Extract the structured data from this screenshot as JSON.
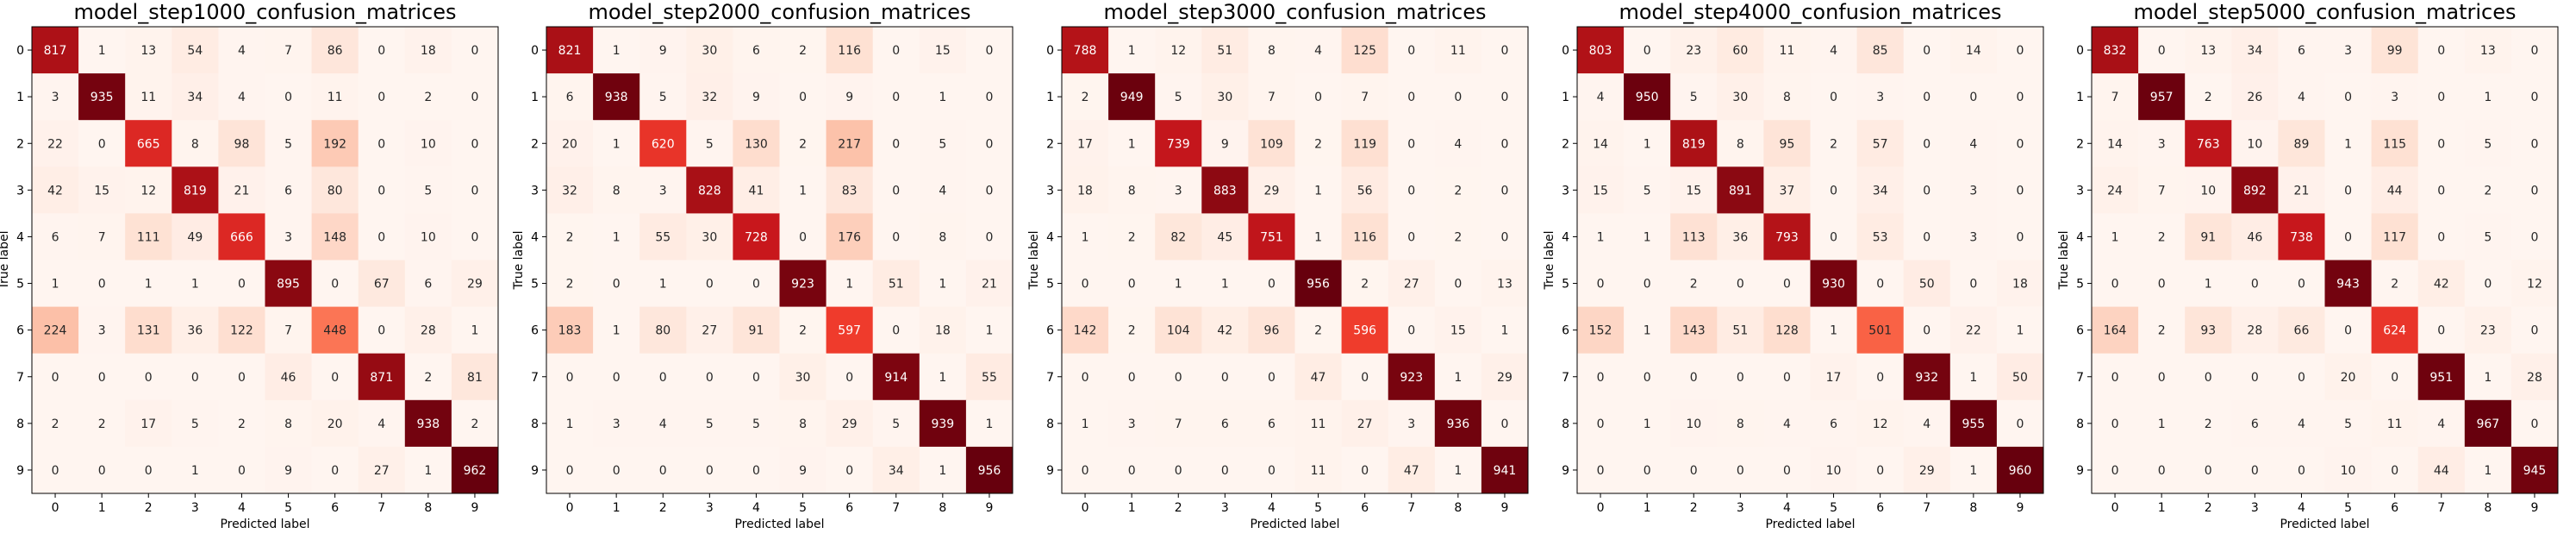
{
  "chart_data": [
    {
      "type": "heatmap",
      "title": "model_step1000_confusion_matrices",
      "xlabel": "Predicted label",
      "ylabel": "True label",
      "x_ticks": [
        "0",
        "1",
        "2",
        "3",
        "4",
        "5",
        "6",
        "7",
        "8",
        "9"
      ],
      "y_ticks": [
        "0",
        "1",
        "2",
        "3",
        "4",
        "5",
        "6",
        "7",
        "8",
        "9"
      ],
      "colormap": "Reds",
      "matrix": [
        [
          817,
          1,
          13,
          54,
          4,
          7,
          86,
          0,
          18,
          0
        ],
        [
          3,
          935,
          11,
          34,
          4,
          0,
          11,
          0,
          2,
          0
        ],
        [
          22,
          0,
          665,
          8,
          98,
          5,
          192,
          0,
          10,
          0
        ],
        [
          42,
          15,
          12,
          819,
          21,
          6,
          80,
          0,
          5,
          0
        ],
        [
          6,
          7,
          111,
          49,
          666,
          3,
          148,
          0,
          10,
          0
        ],
        [
          1,
          0,
          1,
          1,
          0,
          895,
          0,
          67,
          6,
          29
        ],
        [
          224,
          3,
          131,
          36,
          122,
          7,
          448,
          0,
          28,
          1
        ],
        [
          0,
          0,
          0,
          0,
          0,
          46,
          0,
          871,
          2,
          81
        ],
        [
          2,
          2,
          17,
          5,
          2,
          8,
          20,
          4,
          938,
          2
        ],
        [
          0,
          0,
          0,
          1,
          0,
          9,
          0,
          27,
          1,
          962
        ]
      ]
    },
    {
      "type": "heatmap",
      "title": "model_step2000_confusion_matrices",
      "xlabel": "Predicted label",
      "ylabel": "True label",
      "x_ticks": [
        "0",
        "1",
        "2",
        "3",
        "4",
        "5",
        "6",
        "7",
        "8",
        "9"
      ],
      "y_ticks": [
        "0",
        "1",
        "2",
        "3",
        "4",
        "5",
        "6",
        "7",
        "8",
        "9"
      ],
      "colormap": "Reds",
      "matrix": [
        [
          821,
          1,
          9,
          30,
          6,
          2,
          116,
          0,
          15,
          0
        ],
        [
          6,
          938,
          5,
          32,
          9,
          0,
          9,
          0,
          1,
          0
        ],
        [
          20,
          1,
          620,
          5,
          130,
          2,
          217,
          0,
          5,
          0
        ],
        [
          32,
          8,
          3,
          828,
          41,
          1,
          83,
          0,
          4,
          0
        ],
        [
          2,
          1,
          55,
          30,
          728,
          0,
          176,
          0,
          8,
          0
        ],
        [
          2,
          0,
          1,
          0,
          0,
          923,
          1,
          51,
          1,
          21
        ],
        [
          183,
          1,
          80,
          27,
          91,
          2,
          597,
          0,
          18,
          1
        ],
        [
          0,
          0,
          0,
          0,
          0,
          30,
          0,
          914,
          1,
          55
        ],
        [
          1,
          3,
          4,
          5,
          5,
          8,
          29,
          5,
          939,
          1
        ],
        [
          0,
          0,
          0,
          0,
          0,
          9,
          0,
          34,
          1,
          956
        ]
      ]
    },
    {
      "type": "heatmap",
      "title": "model_step3000_confusion_matrices",
      "xlabel": "Predicted label",
      "ylabel": "True label",
      "x_ticks": [
        "0",
        "1",
        "2",
        "3",
        "4",
        "5",
        "6",
        "7",
        "8",
        "9"
      ],
      "y_ticks": [
        "0",
        "1",
        "2",
        "3",
        "4",
        "5",
        "6",
        "7",
        "8",
        "9"
      ],
      "colormap": "Reds",
      "matrix": [
        [
          788,
          1,
          12,
          51,
          8,
          4,
          125,
          0,
          11,
          0
        ],
        [
          2,
          949,
          5,
          30,
          7,
          0,
          7,
          0,
          0,
          0
        ],
        [
          17,
          1,
          739,
          9,
          109,
          2,
          119,
          0,
          4,
          0
        ],
        [
          18,
          8,
          3,
          883,
          29,
          1,
          56,
          0,
          2,
          0
        ],
        [
          1,
          2,
          82,
          45,
          751,
          1,
          116,
          0,
          2,
          0
        ],
        [
          0,
          0,
          1,
          1,
          0,
          956,
          2,
          27,
          0,
          13
        ],
        [
          142,
          2,
          104,
          42,
          96,
          2,
          596,
          0,
          15,
          1
        ],
        [
          0,
          0,
          0,
          0,
          0,
          47,
          0,
          923,
          1,
          29
        ],
        [
          1,
          3,
          7,
          6,
          6,
          11,
          27,
          3,
          936,
          0
        ],
        [
          0,
          0,
          0,
          0,
          0,
          11,
          0,
          47,
          1,
          941
        ]
      ]
    },
    {
      "type": "heatmap",
      "title": "model_step4000_confusion_matrices",
      "xlabel": "Predicted label",
      "ylabel": "True label",
      "x_ticks": [
        "0",
        "1",
        "2",
        "3",
        "4",
        "5",
        "6",
        "7",
        "8",
        "9"
      ],
      "y_ticks": [
        "0",
        "1",
        "2",
        "3",
        "4",
        "5",
        "6",
        "7",
        "8",
        "9"
      ],
      "colormap": "Reds",
      "matrix": [
        [
          803,
          0,
          23,
          60,
          11,
          4,
          85,
          0,
          14,
          0
        ],
        [
          4,
          950,
          5,
          30,
          8,
          0,
          3,
          0,
          0,
          0
        ],
        [
          14,
          1,
          819,
          8,
          95,
          2,
          57,
          0,
          4,
          0
        ],
        [
          15,
          5,
          15,
          891,
          37,
          0,
          34,
          0,
          3,
          0
        ],
        [
          1,
          1,
          113,
          36,
          793,
          0,
          53,
          0,
          3,
          0
        ],
        [
          0,
          0,
          2,
          0,
          0,
          930,
          0,
          50,
          0,
          18
        ],
        [
          152,
          1,
          143,
          51,
          128,
          1,
          501,
          0,
          22,
          1
        ],
        [
          0,
          0,
          0,
          0,
          0,
          17,
          0,
          932,
          1,
          50
        ],
        [
          0,
          1,
          10,
          8,
          4,
          6,
          12,
          4,
          955,
          0
        ],
        [
          0,
          0,
          0,
          0,
          0,
          10,
          0,
          29,
          1,
          960
        ]
      ]
    },
    {
      "type": "heatmap",
      "title": "model_step5000_confusion_matrices",
      "xlabel": "Predicted label",
      "ylabel": "True label",
      "x_ticks": [
        "0",
        "1",
        "2",
        "3",
        "4",
        "5",
        "6",
        "7",
        "8",
        "9"
      ],
      "y_ticks": [
        "0",
        "1",
        "2",
        "3",
        "4",
        "5",
        "6",
        "7",
        "8",
        "9"
      ],
      "colormap": "Reds",
      "matrix": [
        [
          832,
          0,
          13,
          34,
          6,
          3,
          99,
          0,
          13,
          0
        ],
        [
          7,
          957,
          2,
          26,
          4,
          0,
          3,
          0,
          1,
          0
        ],
        [
          14,
          3,
          763,
          10,
          89,
          1,
          115,
          0,
          5,
          0
        ],
        [
          24,
          7,
          10,
          892,
          21,
          0,
          44,
          0,
          2,
          0
        ],
        [
          1,
          2,
          91,
          46,
          738,
          0,
          117,
          0,
          5,
          0
        ],
        [
          0,
          0,
          1,
          0,
          0,
          943,
          2,
          42,
          0,
          12
        ],
        [
          164,
          2,
          93,
          28,
          66,
          0,
          624,
          0,
          23,
          0
        ],
        [
          0,
          0,
          0,
          0,
          0,
          20,
          0,
          951,
          1,
          28
        ],
        [
          0,
          1,
          2,
          6,
          4,
          5,
          11,
          4,
          967,
          0
        ],
        [
          0,
          0,
          0,
          0,
          0,
          10,
          0,
          44,
          1,
          945
        ]
      ]
    }
  ]
}
